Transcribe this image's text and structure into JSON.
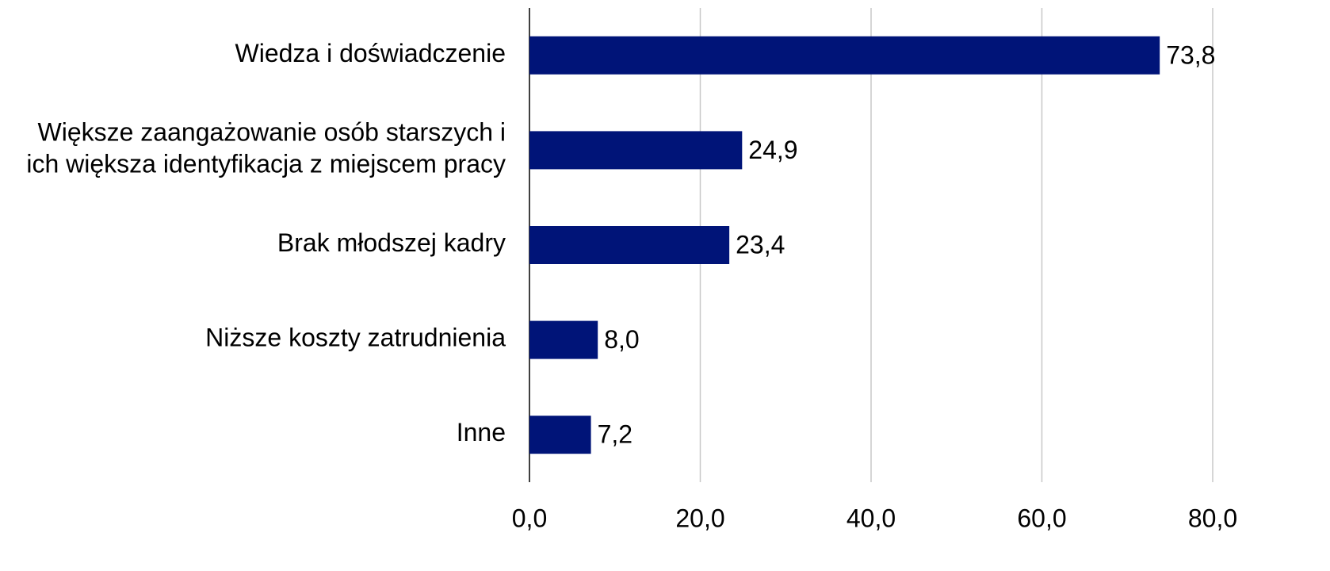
{
  "chart_data": {
    "type": "barh",
    "categories": [
      "Wiedza i doświadczenie",
      "Większe zaangażowanie osób starszych i ich większa identyfikacja z miejscem pracy",
      "Brak młodszej kadry",
      "Niższe koszty zatrudnienia",
      "Inne"
    ],
    "values": [
      73.8,
      24.9,
      23.4,
      8.0,
      7.2
    ],
    "value_labels": [
      "73,8",
      "24,9",
      "23,4",
      "8,0",
      "7,2"
    ],
    "color": "#001478",
    "xlim": [
      0,
      80
    ],
    "xticks": [
      {
        "value": 0,
        "label": "0,0"
      },
      {
        "value": 20,
        "label": "20,0"
      },
      {
        "value": 40,
        "label": "40,0"
      },
      {
        "value": 60,
        "label": "60,0"
      },
      {
        "value": 80,
        "label": "80,0"
      }
    ],
    "grid": true
  }
}
